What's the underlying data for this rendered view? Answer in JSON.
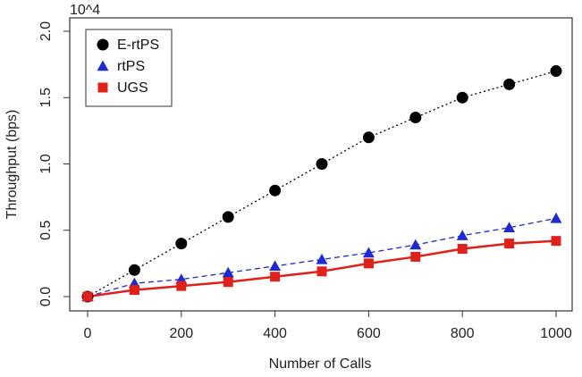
{
  "chart_data": {
    "type": "line",
    "title": "",
    "xlabel": "Number of Calls",
    "ylabel": "Throughput (bps)",
    "y_multiplier_label": "10^4",
    "xlim": [
      0,
      1000
    ],
    "ylim": [
      0,
      2.0
    ],
    "xticks": [
      0,
      200,
      400,
      600,
      800,
      1000
    ],
    "yticks": [
      "0.0",
      "0.5",
      "1.0",
      "1.5",
      "2.0"
    ],
    "grid": false,
    "legend_position": "top-left",
    "x": [
      0,
      100,
      200,
      300,
      400,
      500,
      600,
      700,
      800,
      900,
      1000
    ],
    "series": [
      {
        "name": "E-rtPS",
        "marker": "circle",
        "color": "#000000",
        "line_style": "dotted",
        "values": [
          0.0,
          0.2,
          0.4,
          0.6,
          0.8,
          1.0,
          1.2,
          1.35,
          1.5,
          1.6,
          1.7
        ]
      },
      {
        "name": "rtPS",
        "marker": "triangle",
        "color": "#1f2bd1",
        "line_style": "dashed",
        "values": [
          0.0,
          0.1,
          0.13,
          0.18,
          0.23,
          0.28,
          0.33,
          0.39,
          0.46,
          0.52,
          0.59
        ]
      },
      {
        "name": "UGS",
        "marker": "square",
        "color": "#e0201b",
        "line_style": "solid",
        "values": [
          0.0,
          0.05,
          0.08,
          0.11,
          0.15,
          0.19,
          0.25,
          0.3,
          0.36,
          0.4,
          0.42
        ]
      }
    ]
  }
}
